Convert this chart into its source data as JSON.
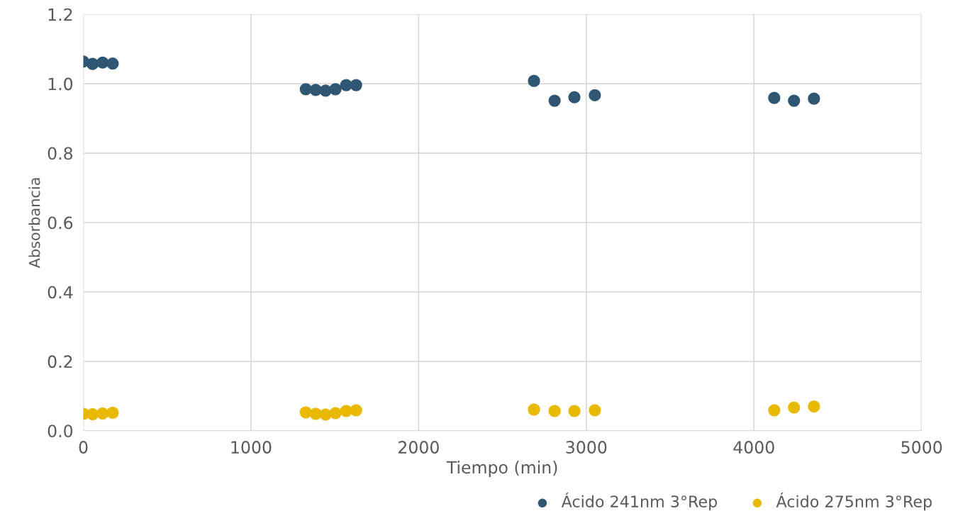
{
  "chart_data": {
    "type": "scatter",
    "xlabel": "Tiempo (min)",
    "ylabel": "Absorbancia",
    "xlim": [
      0,
      5000
    ],
    "xticks": [
      0,
      1000,
      2000,
      3000,
      4000,
      5000
    ],
    "ylim": [
      0,
      1.2
    ],
    "yticks": [
      {
        "value": 0,
        "label": "0.0"
      },
      {
        "value": 0.2,
        "label": "0.2"
      },
      {
        "value": 0.4,
        "label": "0.4"
      },
      {
        "value": 0.6,
        "label": "0.6"
      },
      {
        "value": 0.8,
        "label": "0.8"
      },
      {
        "value": 1.0,
        "label": "1.0"
      },
      {
        "value": 1.2,
        "label": "1.2"
      }
    ],
    "grid": true,
    "legend": "bottom right",
    "marker": "circle",
    "x": [
      0,
      55,
      115,
      175,
      1327,
      1386,
      1445,
      1504,
      1568,
      1627,
      2688,
      2811,
      2929,
      3051,
      4121,
      4239,
      4358
    ],
    "series": [
      {
        "name": "Ácido 241nm 3°Rep",
        "color": "#2f5673",
        "values": [
          1.064,
          1.057,
          1.061,
          1.058,
          0.984,
          0.982,
          0.98,
          0.984,
          0.996,
          0.996,
          1.008,
          0.951,
          0.961,
          0.967,
          0.959,
          0.951,
          0.957
        ]
      },
      {
        "name": "Ácido 275nm 3°Rep",
        "color": "#e9b800",
        "values": [
          0.049,
          0.048,
          0.05,
          0.052,
          0.053,
          0.049,
          0.047,
          0.051,
          0.057,
          0.059,
          0.061,
          0.057,
          0.057,
          0.059,
          0.059,
          0.067,
          0.07
        ]
      }
    ]
  }
}
